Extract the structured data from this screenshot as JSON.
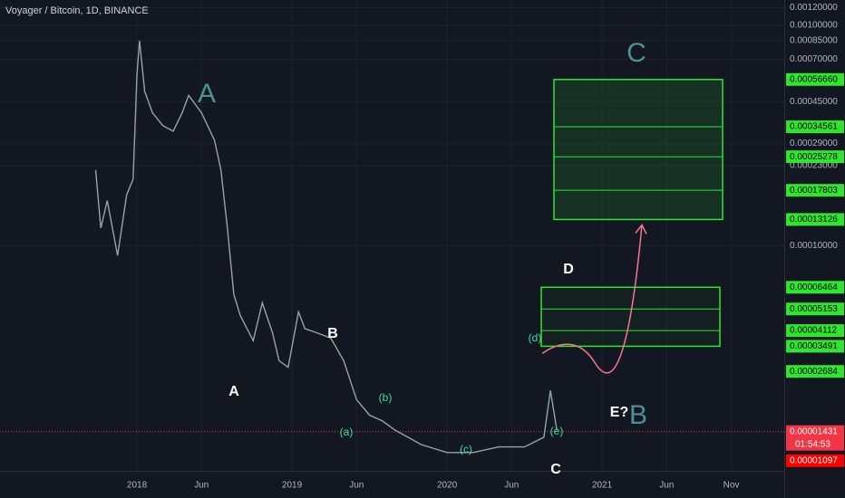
{
  "chart_data": {
    "type": "line",
    "title": "Voyager / Bitcoin, 1D, BINANCE",
    "log_y": true,
    "grid": true,
    "xlim": [
      -10.6,
      50.1
    ],
    "ylim": [
      9.5e-06,
      0.0013
    ],
    "xticks": [
      {
        "value": 0,
        "label": "2018"
      },
      {
        "value": 5,
        "label": "Jun"
      },
      {
        "value": 12,
        "label": "2019"
      },
      {
        "value": 17,
        "label": "Jun"
      },
      {
        "value": 24,
        "label": "2020"
      },
      {
        "value": 29,
        "label": "Jun"
      },
      {
        "value": 36,
        "label": "2021"
      },
      {
        "value": 41,
        "label": "Jun"
      },
      {
        "value": 46,
        "label": "Nov"
      }
    ],
    "yticks": [
      {
        "value": 0.0012,
        "label": "0.00120000"
      },
      {
        "value": 0.001,
        "label": "0.00100000"
      },
      {
        "value": 0.00085,
        "label": "0.00085000"
      },
      {
        "value": 0.0007,
        "label": "0.00070000"
      },
      {
        "value": 0.00045,
        "label": "0.00045000"
      },
      {
        "value": 0.00029,
        "label": "0.00029000"
      },
      {
        "value": 0.00023,
        "label": "0.00023000"
      },
      {
        "value": 0.0001,
        "label": "0.00010000"
      }
    ],
    "series": [
      {
        "color": "#8fa7ab",
        "x": [
          -3.2,
          -2.8,
          -2.3,
          -1.5,
          -0.8,
          -0.3,
          0,
          0.2,
          0.6,
          1.2,
          2,
          2.8,
          3.5,
          4,
          5,
          6,
          6.5,
          7,
          7.5,
          8,
          9,
          9.7,
          10.5,
          11,
          11.7,
          12.5,
          13,
          14,
          15,
          16,
          17,
          18,
          19,
          20,
          22,
          24,
          26,
          28,
          30,
          31.5,
          32,
          32.5
        ],
        "values": [
          0.00022,
          0.00012,
          0.00016,
          9e-05,
          0.00017,
          0.0002,
          0.0006,
          0.00085,
          0.0005,
          0.0004,
          0.00035,
          0.00033,
          0.0004,
          0.00048,
          0.0004,
          0.0003,
          0.00022,
          0.00012,
          6e-05,
          4.8e-05,
          3.7e-05,
          5.5e-05,
          4e-05,
          3e-05,
          2.8e-05,
          5e-05,
          4.2e-05,
          4e-05,
          3.8e-05,
          3e-05,
          2e-05,
          1.7e-05,
          1.6e-05,
          1.45e-05,
          1.25e-05,
          1.15e-05,
          1.15e-05,
          1.22e-05,
          1.22e-05,
          1.35e-05,
          2.2e-05,
          1.45e-05
        ]
      }
    ],
    "levels": [
      {
        "value": 0.0005666,
        "label": "0.00056660"
      },
      {
        "value": 0.00034561,
        "label": "0.00034561"
      },
      {
        "value": 0.00025278,
        "label": "0.00025278"
      },
      {
        "value": 0.00017803,
        "label": "0.00017803"
      },
      {
        "value": 0.00013126,
        "label": "0.00013126"
      },
      {
        "value": 6.464e-05,
        "label": "0.00006464"
      },
      {
        "value": 5.153e-05,
        "label": "0.00005153"
      },
      {
        "value": 4.112e-05,
        "label": "0.00004112"
      },
      {
        "value": 3.491e-05,
        "label": "0.00003491"
      },
      {
        "value": 2.684e-05,
        "label": "0.00002684"
      }
    ],
    "level_color": "#2ee62e",
    "current_price": {
      "value": 1.431e-05,
      "label": "0.00001431",
      "color": "#f23645"
    },
    "countdown": "01:54:53",
    "low_price": {
      "value": 1.097e-05,
      "label": "0.00001097",
      "color": "#ff0000"
    },
    "annotations": [
      {
        "text": "A",
        "color": "#4f8f96"
      },
      {
        "text": "C",
        "color": "#4f8f96"
      },
      {
        "text": "B",
        "color": "#4f8f96"
      },
      {
        "text": "A",
        "color": "#ffffff"
      },
      {
        "text": "B",
        "color": "#ffffff"
      },
      {
        "text": "C",
        "color": "#ffffff"
      },
      {
        "text": "D",
        "color": "#ffffff"
      },
      {
        "text": "E?",
        "color": "#ffffff"
      },
      {
        "text": "(a)",
        "color": "#3ce0a0"
      },
      {
        "text": "(b)",
        "color": "#3ce0a0"
      },
      {
        "text": "(c)",
        "color": "#3ce0a0"
      },
      {
        "text": "(d)",
        "color": "#3ce0a0"
      },
      {
        "text": "(e)",
        "color": "#3ce0a0"
      }
    ]
  }
}
